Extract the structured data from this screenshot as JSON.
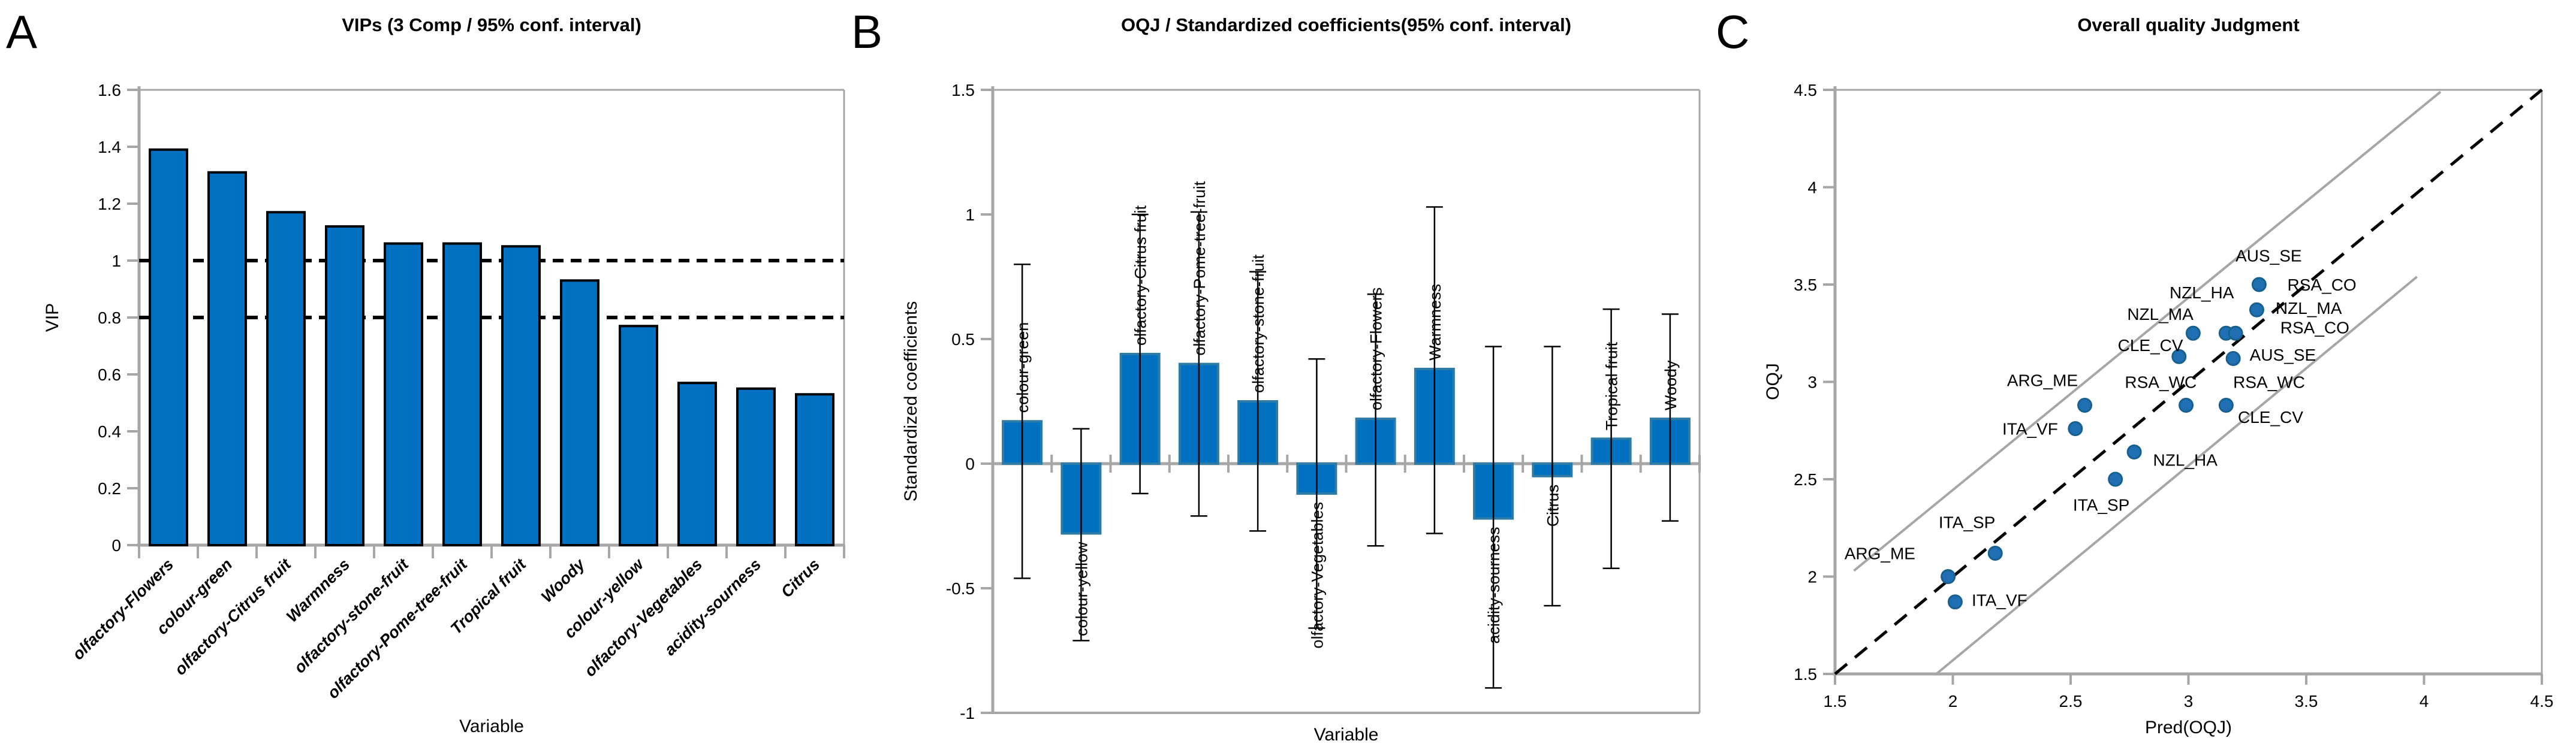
{
  "panels": [
    {
      "letter": "A",
      "title": "VIPs (3 Comp / 95% conf. interval)",
      "xlabel": "Variable",
      "ylabel": "VIP"
    },
    {
      "letter": "B",
      "title": "OQJ / Standardized coefficients(95% conf. interval)",
      "xlabel": "Variable",
      "ylabel": "Standardized coefficients"
    },
    {
      "letter": "C",
      "title": "Overall quality Judgment",
      "xlabel": "Pred(OQJ)",
      "ylabel": "OQJ"
    }
  ],
  "colors": {
    "bar_fill": "#0070C0",
    "bar_border_a": "#000000",
    "bar_border_b": "#2E7BA6",
    "axis_gray": "#A6A6A6",
    "error_bar": "#000000",
    "ref_line": "#000000",
    "scatter_fill": "#1F6FB2",
    "scatter_edge": "#17608F",
    "text": "#000000"
  },
  "chart_data": [
    {
      "panel": "A",
      "type": "bar",
      "title": "VIPs (3 Comp / 95% conf. interval)",
      "xlabel": "Variable",
      "ylabel": "VIP",
      "categories": [
        "olfactory-Flowers",
        "colour-green",
        "olfactory-Citrus fruit",
        "Warmness",
        "olfactory-stone-fruit",
        "olfactory-Pome-tree-fruit",
        "Tropical fruit",
        "Woody",
        "colour-yellow",
        "olfactory-Vegetables",
        "acidity-sourness",
        "Citrus"
      ],
      "values": [
        1.39,
        1.31,
        1.17,
        1.12,
        1.06,
        1.06,
        1.05,
        0.93,
        0.77,
        0.57,
        0.55,
        0.53
      ],
      "ylim": [
        0,
        1.6
      ],
      "yticks": [
        0,
        0.2,
        0.4,
        0.6,
        0.8,
        1,
        1.2,
        1.4,
        1.6
      ],
      "ytick_labels": [
        "0",
        "0.2",
        "0.4",
        "0.6",
        "0.8",
        "1",
        "1.2",
        "1.4",
        "1.6"
      ],
      "ref_lines": [
        1,
        0.8
      ],
      "grid": false,
      "legend": "none"
    },
    {
      "panel": "B",
      "type": "bar",
      "error_bars": "95% confidence interval",
      "title": "OQJ / Standardized coefficients(95% conf. interval)",
      "xlabel": "Variable",
      "ylabel": "Standardized coefficients",
      "categories": [
        "colour-green",
        "colour-yellow",
        "olfactory-Citrus fruit",
        "olfactory-Pome-tree-fruit",
        "olfactory-stone-fruit",
        "olfactory-Vegetables",
        "olfactory-Flowers",
        "Warmness",
        "acidity-sourness",
        "Citrus",
        "Tropical fruit",
        "Woody"
      ],
      "values": [
        0.17,
        -0.28,
        0.44,
        0.4,
        0.25,
        -0.12,
        0.18,
        0.38,
        -0.22,
        -0.05,
        0.1,
        0.18
      ],
      "ci_low": [
        -0.46,
        -0.71,
        -0.12,
        -0.21,
        -0.27,
        -0.66,
        -0.33,
        -0.28,
        -0.9,
        -0.57,
        -0.42,
        -0.23
      ],
      "ci_high": [
        0.8,
        0.14,
        1.0,
        1.01,
        0.77,
        0.42,
        0.68,
        1.03,
        0.47,
        0.47,
        0.62,
        0.6
      ],
      "ylim": [
        -1,
        1.5
      ],
      "yticks": [
        1.5,
        1,
        0.5,
        0,
        -0.5,
        -1
      ],
      "ytick_labels": [
        "1.5",
        "1",
        "0.5",
        "0",
        "-0.5",
        "-1"
      ],
      "grid": false,
      "legend": "none"
    },
    {
      "panel": "C",
      "type": "scatter",
      "title": "Overall quality Judgment",
      "xlabel": "Pred(OQJ)",
      "ylabel": "OQJ",
      "xlim": [
        1.5,
        4.5
      ],
      "ylim": [
        1.5,
        4.5
      ],
      "xticks": [
        1.5,
        2,
        2.5,
        3,
        3.5,
        4,
        4.5
      ],
      "xtick_labels": [
        "1.5",
        "2",
        "2.5",
        "3",
        "3.5",
        "4",
        "4.5"
      ],
      "yticks": [
        1.5,
        2,
        2.5,
        3,
        3.5,
        4,
        4.5
      ],
      "ytick_labels": [
        "1.5",
        "2",
        "2.5",
        "3",
        "3.5",
        "4",
        "4.5"
      ],
      "points": [
        {
          "x": 1.98,
          "y": 2.0
        },
        {
          "x": 2.01,
          "y": 1.87
        },
        {
          "x": 2.18,
          "y": 2.12
        },
        {
          "x": 2.52,
          "y": 2.76
        },
        {
          "x": 2.56,
          "y": 2.88
        },
        {
          "x": 2.69,
          "y": 2.5
        },
        {
          "x": 2.77,
          "y": 2.64
        },
        {
          "x": 2.96,
          "y": 3.13
        },
        {
          "x": 2.99,
          "y": 2.88
        },
        {
          "x": 3.02,
          "y": 3.25
        },
        {
          "x": 3.16,
          "y": 3.25
        },
        {
          "x": 3.2,
          "y": 3.25
        },
        {
          "x": 3.16,
          "y": 2.88
        },
        {
          "x": 3.19,
          "y": 3.12
        },
        {
          "x": 3.29,
          "y": 3.37
        },
        {
          "x": 3.3,
          "y": 3.5
        }
      ],
      "annotations": [
        {
          "text": "AUS_SE",
          "x": 3.2,
          "y": 3.65
        },
        {
          "text": "RSA_CO",
          "x": 3.42,
          "y": 3.5
        },
        {
          "text": "NZL_HA",
          "x": 2.92,
          "y": 3.46
        },
        {
          "text": "NZL_MA",
          "x": 3.37,
          "y": 3.38
        },
        {
          "text": "NZL_MA",
          "x": 2.74,
          "y": 3.35
        },
        {
          "text": "RSA_CO",
          "x": 3.39,
          "y": 3.28
        },
        {
          "text": "CLE_CV",
          "x": 2.7,
          "y": 3.19
        },
        {
          "text": "AUS_SE",
          "x": 3.26,
          "y": 3.14
        },
        {
          "text": "ARG_ME",
          "x": 2.23,
          "y": 3.01
        },
        {
          "text": "RSA_WC",
          "x": 2.73,
          "y": 3.0
        },
        {
          "text": "RSA_WC",
          "x": 3.19,
          "y": 3.0
        },
        {
          "text": "CLE_CV",
          "x": 3.21,
          "y": 2.82
        },
        {
          "text": "ITA_VF",
          "x": 2.21,
          "y": 2.76
        },
        {
          "text": "NZL_HA",
          "x": 2.85,
          "y": 2.6
        },
        {
          "text": "ITA_SP",
          "x": 2.51,
          "y": 2.37
        },
        {
          "text": "ITA_SP",
          "x": 1.94,
          "y": 2.28
        },
        {
          "text": "ARG_ME",
          "x": 1.54,
          "y": 2.12
        },
        {
          "text": "ITA_VF",
          "x": 2.08,
          "y": 1.88
        }
      ],
      "lines": [
        {
          "name": "identity-line",
          "x1": 1.5,
          "y1": 1.5,
          "x2": 4.5,
          "y2": 4.5,
          "style": "dashed",
          "color": "#000000"
        },
        {
          "name": "conf-band-upper",
          "x1": 1.58,
          "y1": 2.03,
          "x2": 4.07,
          "y2": 4.49,
          "style": "solid",
          "color": "#A6A6A6"
        },
        {
          "name": "conf-band-lower",
          "x1": 1.93,
          "y1": 1.5,
          "x2": 3.97,
          "y2": 3.54,
          "style": "solid",
          "color": "#A6A6A6"
        }
      ],
      "grid": false,
      "legend": "none"
    }
  ]
}
